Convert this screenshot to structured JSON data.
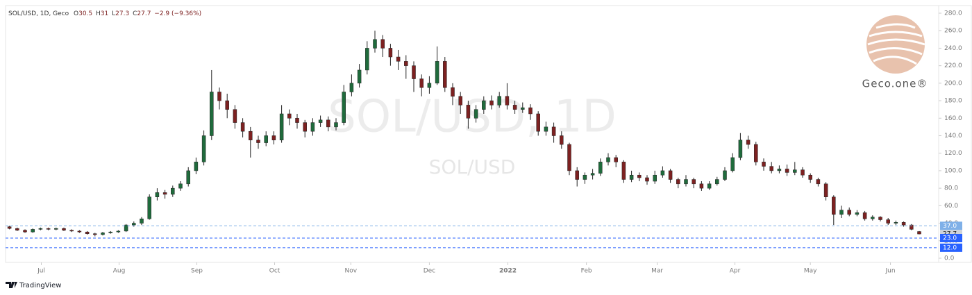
{
  "chart_data": {
    "type": "candlestick",
    "symbol": "SOL/USD, 1D, Geco",
    "ohlc_labels": [
      "O",
      "H",
      "L",
      "C"
    ],
    "change": "−2.9 (−9.36%)",
    "watermark": "SOL/USD, 1D",
    "watermark_sub": "SOL/USD",
    "brand": "Geco.one®",
    "footer": "TradingView",
    "up_color": "#1f6b3c",
    "down_color": "#7d2121",
    "grid": false,
    "open": [
      36,
      34,
      32,
      30,
      33,
      34,
      33,
      34,
      32,
      31,
      30,
      28,
      27,
      29,
      30,
      31,
      38,
      40,
      45,
      70,
      75,
      73,
      80,
      85,
      100,
      110,
      140,
      190,
      180,
      170,
      155,
      145,
      135,
      132,
      140,
      135,
      165,
      160,
      155,
      145,
      155,
      158,
      150,
      155,
      190,
      200,
      215,
      240,
      250,
      240,
      230,
      225,
      220,
      205,
      195,
      200,
      225,
      195,
      185,
      175,
      160,
      170,
      180,
      175,
      185,
      175,
      170,
      172,
      165,
      145,
      150,
      140,
      130,
      100,
      90,
      95,
      97,
      110,
      115,
      110,
      90,
      95,
      92,
      88,
      95,
      100,
      90,
      85,
      90,
      85,
      80,
      85,
      90,
      100,
      115,
      135,
      130,
      110,
      105,
      100,
      102,
      98,
      101,
      95,
      90,
      85,
      70,
      50,
      55,
      50,
      52,
      45,
      47,
      44,
      40,
      41,
      38,
      30.5
    ],
    "high": [
      37,
      35,
      33,
      34,
      35,
      35,
      35,
      35,
      33,
      32,
      31,
      29,
      30,
      31,
      32,
      39,
      42,
      47,
      73,
      80,
      78,
      83,
      88,
      104,
      115,
      146,
      215,
      195,
      188,
      175,
      160,
      150,
      140,
      145,
      145,
      175,
      170,
      165,
      158,
      160,
      163,
      162,
      160,
      198,
      210,
      222,
      248,
      260,
      255,
      245,
      238,
      232,
      225,
      210,
      208,
      242,
      230,
      200,
      190,
      180,
      175,
      185,
      186,
      190,
      200,
      180,
      178,
      176,
      168,
      156,
      155,
      145,
      132,
      104,
      98,
      102,
      114,
      120,
      118,
      112,
      100,
      98,
      95,
      100,
      105,
      102,
      92,
      95,
      92,
      88,
      88,
      93,
      104,
      120,
      143,
      140,
      133,
      114,
      110,
      106,
      107,
      110,
      104,
      97,
      92,
      87,
      72,
      60,
      58,
      55,
      54,
      49,
      48,
      46,
      43,
      42,
      39,
      31
    ],
    "low": [
      33,
      31,
      29,
      29,
      32,
      32,
      32,
      31,
      30,
      29,
      27,
      25,
      26,
      28,
      29,
      30,
      36,
      38,
      44,
      66,
      68,
      70,
      77,
      82,
      96,
      106,
      135,
      170,
      160,
      148,
      138,
      115,
      125,
      128,
      130,
      132,
      152,
      148,
      138,
      140,
      150,
      145,
      146,
      152,
      185,
      195,
      210,
      235,
      230,
      220,
      215,
      205,
      190,
      185,
      188,
      198,
      190,
      175,
      165,
      148,
      155,
      165,
      170,
      172,
      170,
      165,
      166,
      158,
      140,
      140,
      132,
      125,
      95,
      82,
      85,
      90,
      94,
      106,
      104,
      86,
      87,
      88,
      84,
      85,
      92,
      86,
      80,
      82,
      80,
      77,
      78,
      83,
      88,
      98,
      112,
      125,
      106,
      100,
      97,
      97,
      94,
      95,
      92,
      86,
      82,
      66,
      38,
      46,
      48,
      48,
      43,
      43,
      42,
      38,
      38,
      36,
      32,
      27.3
    ],
    "close": [
      34,
      32,
      30,
      33,
      34,
      33,
      34,
      32,
      31,
      30,
      28,
      27,
      29,
      30,
      31,
      38,
      40,
      45,
      70,
      75,
      73,
      80,
      85,
      100,
      110,
      140,
      190,
      180,
      170,
      155,
      145,
      135,
      132,
      140,
      135,
      165,
      160,
      155,
      145,
      155,
      158,
      150,
      155,
      190,
      200,
      215,
      240,
      250,
      240,
      230,
      225,
      220,
      205,
      195,
      200,
      225,
      195,
      185,
      175,
      160,
      170,
      180,
      175,
      185,
      175,
      170,
      172,
      165,
      145,
      150,
      140,
      130,
      100,
      90,
      95,
      97,
      110,
      115,
      110,
      90,
      95,
      92,
      88,
      95,
      100,
      90,
      85,
      90,
      85,
      80,
      85,
      90,
      100,
      115,
      135,
      130,
      110,
      105,
      100,
      102,
      98,
      101,
      95,
      90,
      85,
      70,
      50,
      55,
      50,
      52,
      45,
      47,
      44,
      40,
      41,
      38,
      33,
      27.7
    ],
    "xticks": [
      {
        "value": 4.1,
        "label": "Jul"
      },
      {
        "value": 14.1,
        "label": "Aug"
      },
      {
        "value": 24.1,
        "label": "Sep"
      },
      {
        "value": 34.1,
        "label": "Oct"
      },
      {
        "value": 43.9,
        "label": "Nov"
      },
      {
        "value": 54.0,
        "label": "Dec"
      },
      {
        "value": 64.1,
        "label": "2022"
      },
      {
        "value": 74.2,
        "label": "Feb"
      },
      {
        "value": 83.3,
        "label": "Mar"
      },
      {
        "value": 93.3,
        "label": "Apr"
      },
      {
        "value": 103.0,
        "label": "May"
      },
      {
        "value": 113.3,
        "label": "Jun"
      }
    ],
    "ylim": [
      0,
      280
    ],
    "yticks": [
      {
        "value": 0,
        "label": "0.0"
      },
      {
        "value": 20,
        "label": "20.0"
      },
      {
        "value": 40,
        "label": "40.0"
      },
      {
        "value": 60,
        "label": "60.0"
      },
      {
        "value": 80,
        "label": "80.0"
      },
      {
        "value": 100,
        "label": "100.0"
      },
      {
        "value": 120,
        "label": "120.0"
      },
      {
        "value": 140,
        "label": "140.0"
      },
      {
        "value": 160,
        "label": "160.0"
      },
      {
        "value": 180,
        "label": "180.0"
      },
      {
        "value": 200,
        "label": "200.0"
      },
      {
        "value": 220,
        "label": "220.0"
      },
      {
        "value": 240,
        "label": "240.0"
      },
      {
        "value": 260,
        "label": "260.0"
      },
      {
        "value": 280,
        "label": "280.0"
      }
    ],
    "price_lines": [
      {
        "value": 37,
        "label": "37.0",
        "color": "#7fb0e8"
      },
      {
        "value": 27.7,
        "label": "27.7",
        "color": "#cfd3da"
      },
      {
        "value": 23,
        "label": "23.0",
        "color": "#2962ff"
      },
      {
        "value": 12,
        "label": "12.0",
        "color": "#2962ff"
      }
    ]
  }
}
